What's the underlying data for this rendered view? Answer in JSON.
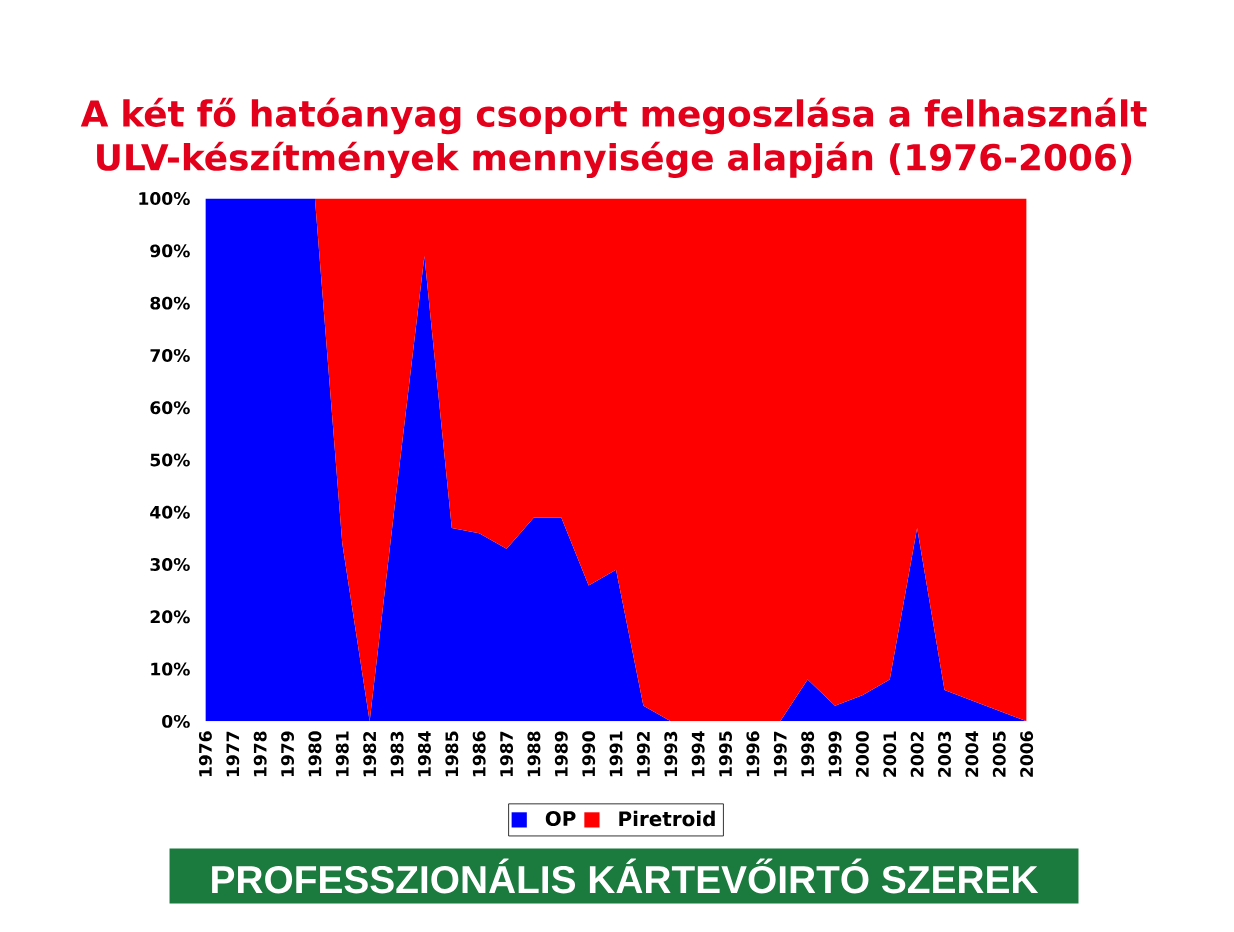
{
  "chart_data": {
    "type": "area",
    "title": "A két fő hatóanyag csoport megoszlása a felhasznált ULV-készítmények mennyisége alapján (1976-2006)",
    "categories": [
      "1976",
      "1977",
      "1978",
      "1979",
      "1980",
      "1981",
      "1982",
      "1983",
      "1984",
      "1985",
      "1986",
      "1987",
      "1988",
      "1989",
      "1990",
      "1991",
      "1992",
      "1993",
      "1994",
      "1995",
      "1996",
      "1997",
      "1998",
      "1999",
      "2000",
      "2001",
      "2002",
      "2003",
      "2004",
      "2005",
      "2006"
    ],
    "series": [
      {
        "name": "OP",
        "color": "#0000ff",
        "values": [
          100,
          100,
          100,
          100,
          100,
          34,
          0,
          45,
          89,
          37,
          36,
          33,
          39,
          39,
          26,
          29,
          3,
          0,
          0,
          0,
          0,
          0,
          8,
          3,
          5,
          8,
          37,
          6,
          4,
          2,
          0
        ]
      },
      {
        "name": "Piretroid",
        "color": "#ff0000",
        "values": [
          null,
          null,
          null,
          null,
          0,
          66,
          100,
          55,
          11,
          63,
          64,
          67,
          61,
          61,
          74,
          71,
          97,
          100,
          100,
          100,
          100,
          100,
          92,
          97,
          95,
          92,
          63,
          94,
          96,
          98,
          100
        ]
      }
    ],
    "stacked": true,
    "ylim": [
      0,
      100
    ],
    "yticks": [
      {
        "value": 0,
        "label": "0%"
      },
      {
        "value": 10,
        "label": "10%"
      },
      {
        "value": 20,
        "label": "20%"
      },
      {
        "value": 30,
        "label": "30%"
      },
      {
        "value": 40,
        "label": "40%"
      },
      {
        "value": 50,
        "label": "50%"
      },
      {
        "value": 60,
        "label": "60%"
      },
      {
        "value": 70,
        "label": "70%"
      },
      {
        "value": 80,
        "label": "80%"
      },
      {
        "value": 90,
        "label": "90%"
      },
      {
        "value": 100,
        "label": "100%"
      }
    ],
    "legend": "bottom",
    "annotations": [
      "PROFESSZIONÁLIS KÁRTEVŐIRTÓ SZEREK"
    ]
  }
}
